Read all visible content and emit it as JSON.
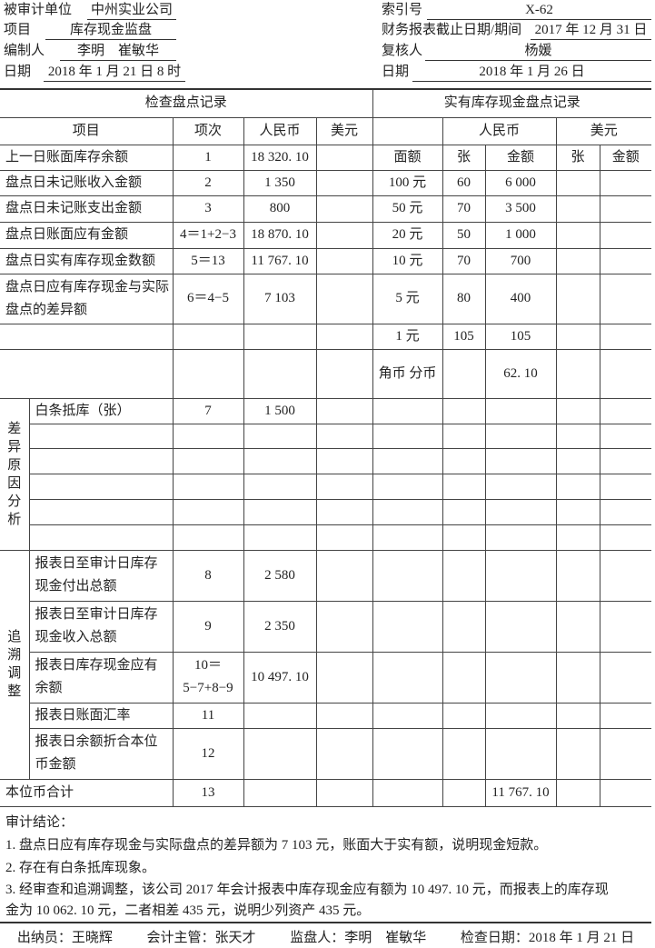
{
  "header": {
    "unit_label": "被审计单位",
    "unit_value": "中州实业公司",
    "project_label": "项目",
    "project_value": "库存现金监盘",
    "preparer_label": "编制人",
    "preparer_value": "李明　崔敏华",
    "date_label": "日期",
    "date_value": "2018 年 1 月 21 日 8 时",
    "index_label": "索引号",
    "index_value": "X-62",
    "period_label": "财务报表截止日期/期间",
    "period_value": "2017 年 12 月 31 日",
    "reviewer_label": "复核人",
    "reviewer_value": "杨媛",
    "review_date_label": "日期",
    "review_date_value": "2018 年 1 月 26 日"
  },
  "table": {
    "left_title": "检查盘点记录",
    "right_title": "实有库存现金盘点记录",
    "left_headers": [
      "项目",
      "项次",
      "人民币",
      "美元"
    ],
    "right_headers": {
      "rmb": "人民币",
      "usd": "美元"
    },
    "sections": {
      "analysis": "差异原因分析",
      "trace": "追溯调整"
    },
    "rows": [
      {
        "item": "上一日账面库存余额",
        "index": "1",
        "rmb": "18 320. 10",
        "usd": "",
        "denom": "面额",
        "cnt": "张",
        "amt": "金额",
        "ucnt": "张",
        "uamt": "金额"
      },
      {
        "item": "盘点日未记账收入金额",
        "index": "2",
        "rmb": "1 350",
        "denom": "100 元",
        "cnt": "60",
        "amt": "6 000"
      },
      {
        "item": "盘点日未记账支出金额",
        "index": "3",
        "rmb": "800",
        "denom": "50 元",
        "cnt": "70",
        "amt": "3 500"
      },
      {
        "item": "盘点日账面应有金额",
        "index": "4＝1+2−3",
        "rmb": "18 870. 10",
        "denom": "20 元",
        "cnt": "50",
        "amt": "1 000"
      },
      {
        "item": "盘点日实有库存现金数额",
        "index": "5＝13",
        "rmb": "11 767. 10",
        "denom": "10 元",
        "cnt": "70",
        "amt": "700"
      },
      {
        "item": "盘点日应有库存现金与实际盘点的差异额",
        "index": "6＝4−5",
        "rmb": "7 103",
        "denom": "5 元",
        "cnt": "80",
        "amt": "400"
      },
      {
        "item": "",
        "index": "",
        "rmb": "",
        "denom": "1 元",
        "cnt": "105",
        "amt": "105"
      },
      {
        "item": "",
        "index": "",
        "rmb": "",
        "denom": "角币 分币",
        "cnt": "",
        "amt": "62. 10"
      },
      {
        "section": "analysis",
        "item": "白条抵库（张）",
        "index": "7",
        "rmb": "1 500"
      },
      {
        "section": "analysis",
        "item": ""
      },
      {
        "section": "analysis",
        "item": ""
      },
      {
        "section": "analysis",
        "item": ""
      },
      {
        "section": "analysis",
        "item": ""
      },
      {
        "section": "analysis",
        "item": ""
      },
      {
        "section": "trace",
        "item": "报表日至审计日库存现金付出总额",
        "index": "8",
        "rmb": "2 580"
      },
      {
        "section": "trace",
        "item": "报表日至审计日库存现金收入总额",
        "index": "9",
        "rmb": "2 350"
      },
      {
        "section": "trace",
        "item": "报表日库存现金应有余额",
        "index": "10＝5−7+8−9",
        "rmb": "10 497. 10"
      },
      {
        "section": "trace",
        "item": "报表日账面汇率",
        "index": "11",
        "rmb": ""
      },
      {
        "section": "trace",
        "item": "报表日余额折合本位币金额",
        "index": "12",
        "rmb": ""
      },
      {
        "item": "本位币合计",
        "index": "13",
        "rmb": "",
        "amt": "11 767. 10"
      }
    ]
  },
  "conclusion": {
    "title": "审计结论：",
    "lines": [
      "1. 盘点日应有库存现金与实际盘点的差异额为 7 103 元，账面大于实有额，说明现金短款。",
      "2. 存在有白条抵库现象。",
      "3. 经审查和追溯调整，该公司 2017 年会计报表中库存现金应有额为 10 497. 10 元，而报表上的库存现",
      "金为 10 062. 10 元，二者相差 435 元，说明少列资产 435 元。"
    ]
  },
  "footer": {
    "cashier": "出纳员：王晓辉",
    "supervisor": "会计主管：张天才",
    "monitor": "监盘人：李明　崔敏华",
    "check_date": "检查日期：2018 年 1 月 21 日"
  }
}
